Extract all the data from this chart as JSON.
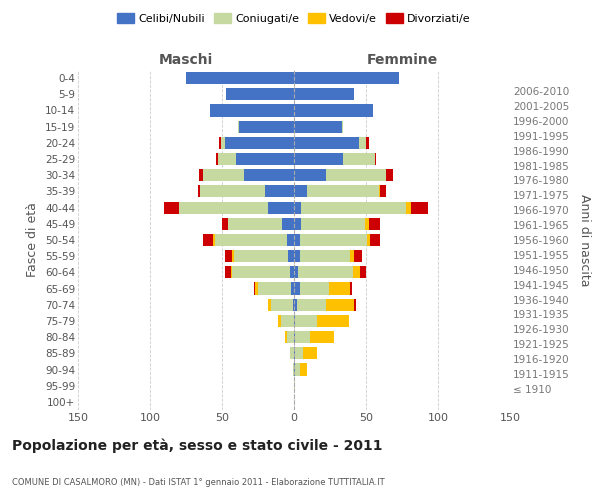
{
  "age_groups": [
    "100+",
    "95-99",
    "90-94",
    "85-89",
    "80-84",
    "75-79",
    "70-74",
    "65-69",
    "60-64",
    "55-59",
    "50-54",
    "45-49",
    "40-44",
    "35-39",
    "30-34",
    "25-29",
    "20-24",
    "15-19",
    "10-14",
    "5-9",
    "0-4"
  ],
  "birth_years": [
    "≤ 1910",
    "1911-1915",
    "1916-1920",
    "1921-1925",
    "1926-1930",
    "1931-1935",
    "1936-1940",
    "1941-1945",
    "1946-1950",
    "1951-1955",
    "1956-1960",
    "1961-1965",
    "1966-1970",
    "1971-1975",
    "1976-1980",
    "1981-1985",
    "1986-1990",
    "1991-1995",
    "1996-2000",
    "2001-2005",
    "2006-2010"
  ],
  "males": {
    "celibi": [
      0,
      0,
      0,
      0,
      0,
      0,
      1,
      2,
      3,
      4,
      5,
      8,
      18,
      20,
      35,
      40,
      48,
      38,
      58,
      47,
      75
    ],
    "coniugati": [
      0,
      0,
      1,
      3,
      5,
      9,
      15,
      23,
      40,
      38,
      50,
      38,
      62,
      45,
      28,
      13,
      3,
      1,
      0,
      0,
      0
    ],
    "vedovi": [
      0,
      0,
      0,
      0,
      1,
      2,
      2,
      2,
      1,
      1,
      1,
      0,
      0,
      0,
      0,
      0,
      0,
      0,
      0,
      0,
      0
    ],
    "divorziati": [
      0,
      0,
      0,
      0,
      0,
      0,
      0,
      1,
      4,
      5,
      7,
      4,
      10,
      2,
      3,
      1,
      1,
      0,
      0,
      0,
      0
    ]
  },
  "females": {
    "nubili": [
      0,
      0,
      1,
      1,
      1,
      1,
      2,
      4,
      3,
      4,
      4,
      5,
      5,
      9,
      22,
      34,
      45,
      33,
      55,
      42,
      73
    ],
    "coniugate": [
      0,
      1,
      3,
      5,
      10,
      15,
      20,
      20,
      38,
      35,
      47,
      44,
      73,
      50,
      42,
      22,
      5,
      1,
      0,
      0,
      0
    ],
    "vedove": [
      0,
      0,
      5,
      10,
      17,
      22,
      20,
      15,
      5,
      3,
      2,
      3,
      3,
      1,
      0,
      0,
      0,
      0,
      0,
      0,
      0
    ],
    "divorziate": [
      0,
      0,
      0,
      0,
      0,
      0,
      1,
      1,
      4,
      5,
      7,
      8,
      12,
      4,
      5,
      1,
      2,
      0,
      0,
      0,
      0
    ]
  },
  "colors": {
    "celibi": "#4472c4",
    "coniugati": "#c5d9a0",
    "vedovi": "#ffc000",
    "divorziati": "#cc0000"
  },
  "title": "Popolazione per età, sesso e stato civile - 2011",
  "subtitle": "COMUNE DI CASALMORO (MN) - Dati ISTAT 1° gennaio 2011 - Elaborazione TUTTITALIA.IT",
  "xlabel_left": "Maschi",
  "xlabel_right": "Femmine",
  "ylabel_left": "Fasce di età",
  "ylabel_right": "Anni di nascita",
  "legend_labels": [
    "Celibi/Nubili",
    "Coniugati/e",
    "Vedovi/e",
    "Divorziati/e"
  ],
  "xlim": 150,
  "background_color": "#ffffff",
  "grid_color": "#cccccc"
}
